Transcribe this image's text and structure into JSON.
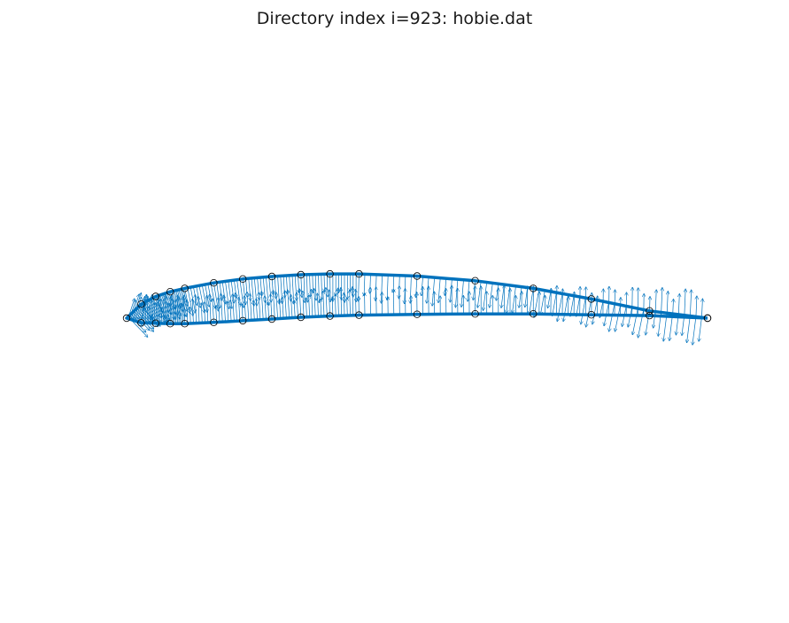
{
  "chart_data": {
    "type": "line",
    "title": "Directory index i=923: hobie.dat",
    "xlabel": "",
    "ylabel": "",
    "grid": false,
    "axes_visible": false,
    "xlim": [
      -0.0125,
      1.0125
    ],
    "ylim": [
      -0.47,
      0.47
    ],
    "series": [
      {
        "role": "airfoil-outline",
        "color": "#0072BD",
        "x": [
          1.0,
          0.9,
          0.8,
          0.7,
          0.6,
          0.5,
          0.4,
          0.35,
          0.3,
          0.25,
          0.2,
          0.15,
          0.1,
          0.075,
          0.05,
          0.025,
          0.0,
          0.025,
          0.05,
          0.075,
          0.1,
          0.15,
          0.2,
          0.25,
          0.3,
          0.35,
          0.4,
          0.5,
          0.6,
          0.7,
          0.8,
          0.9,
          1.0
        ],
        "y": [
          0.0,
          0.017,
          0.045,
          0.07,
          0.088,
          0.099,
          0.104,
          0.104,
          0.102,
          0.098,
          0.092,
          0.083,
          0.07,
          0.062,
          0.051,
          0.033,
          0.0,
          -0.011,
          -0.012,
          -0.013,
          -0.013,
          -0.01,
          -0.006,
          -0.002,
          0.002,
          0.005,
          0.007,
          0.009,
          0.01,
          0.01,
          0.008,
          0.006,
          0.0
        ]
      }
    ],
    "quiver": {
      "color": "#0072BD",
      "description": "dense outward normal vectors along airfoil surface"
    },
    "markers": {
      "style": "open-circle",
      "color": "#000000"
    }
  }
}
